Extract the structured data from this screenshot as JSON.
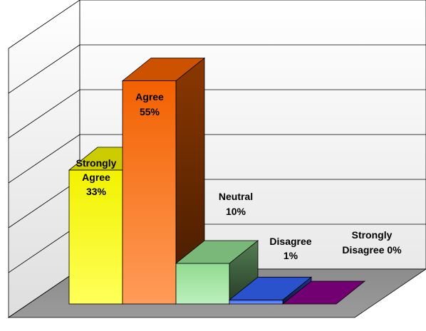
{
  "chart_data": {
    "type": "bar",
    "title": "",
    "xlabel": "",
    "ylabel": "",
    "ylim": [
      0,
      60
    ],
    "grid": true,
    "three_d": true,
    "categories": [
      "Strongly Agree",
      "Agree",
      "Neutral",
      "Disagree",
      "Strongly Disagree"
    ],
    "values": [
      33,
      55,
      10,
      1,
      0
    ],
    "labels": [
      [
        "Strongly",
        "Agree",
        "33%"
      ],
      [
        "Agree",
        "55%"
      ],
      [
        "Neutral",
        "10%"
      ],
      [
        "Disagree",
        "1%"
      ],
      [
        "Strongly",
        "Disagree 0%"
      ]
    ],
    "colors": [
      "#ffff00",
      "#ff6600",
      "#99e699",
      "#3366ff",
      "#800080"
    ]
  }
}
